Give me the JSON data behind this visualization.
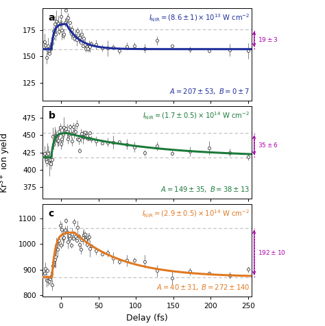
{
  "panel_a": {
    "color": "#1E2D9C",
    "intensity_text": "$I_{\\mathrm{NIR}} = (8.6 \\pm 1) \\times 10^{13}$ W cm$^{-2}$",
    "fit_text": "$A = 207 \\pm 53,\\ B = 0 \\pm 7$",
    "arrow_text": "$19 \\pm 3$",
    "ylim": [
      108,
      196
    ],
    "yticks": [
      125,
      150,
      175
    ],
    "dash_upper": 176,
    "dash_lower": 157,
    "baseline": 157,
    "peak": 181,
    "peak_x": 7,
    "tau_decay": 18,
    "tau_rise": 3.5,
    "t_start": -13,
    "arrow_upper": 176,
    "arrow_lower": 157
  },
  "panel_b": {
    "color": "#1A7A3A",
    "intensity_text": "$I_{\\mathrm{NIR}} = (1.7 \\pm 0.5) \\times 10^{14}$ W cm$^{-2}$",
    "fit_text": "$A = 149 \\pm 35,\\ B = 38 \\pm 13$",
    "arrow_text": "$35 \\pm 6$",
    "ylim": [
      358,
      492
    ],
    "yticks": [
      375,
      400,
      425,
      450,
      475
    ],
    "dash_upper": 453,
    "dash_lower": 418,
    "baseline": 418,
    "peak": 453,
    "peak_x": 8,
    "tau_decay": 120,
    "tau_rise": 3.5,
    "t_start": -13,
    "arrow_upper": 453,
    "arrow_lower": 418
  },
  "panel_c": {
    "color": "#E07820",
    "intensity_text": "$I_{\\mathrm{NIR}} = (2.9 \\pm 0.5) \\times 10^{14}$ W cm$^{-2}$",
    "fit_text": "$A = 40 \\pm 31,\\ B = 272 \\pm 140$",
    "arrow_text": "$192 \\pm 10$",
    "ylim": [
      795,
      1155
    ],
    "yticks": [
      800,
      900,
      1000,
      1100
    ],
    "dash_upper": 1063,
    "dash_lower": 871,
    "baseline": 871,
    "peak": 1045,
    "peak_x": 18,
    "tau_decay": 65,
    "tau_rise": 4.5,
    "t_start": -12,
    "arrow_upper": 1063,
    "arrow_lower": 871
  },
  "xlim": [
    -25,
    255
  ],
  "xticks": [
    0,
    50,
    100,
    150,
    200,
    250
  ],
  "xlabel": "Delay (fs)",
  "ylabel": "$\\mathrm{Kr}^{3+}$ ion yield",
  "panel_labels": [
    "a",
    "b",
    "c"
  ],
  "arrow_color": "#AA00AA",
  "bg_color": "#FFFFFF"
}
